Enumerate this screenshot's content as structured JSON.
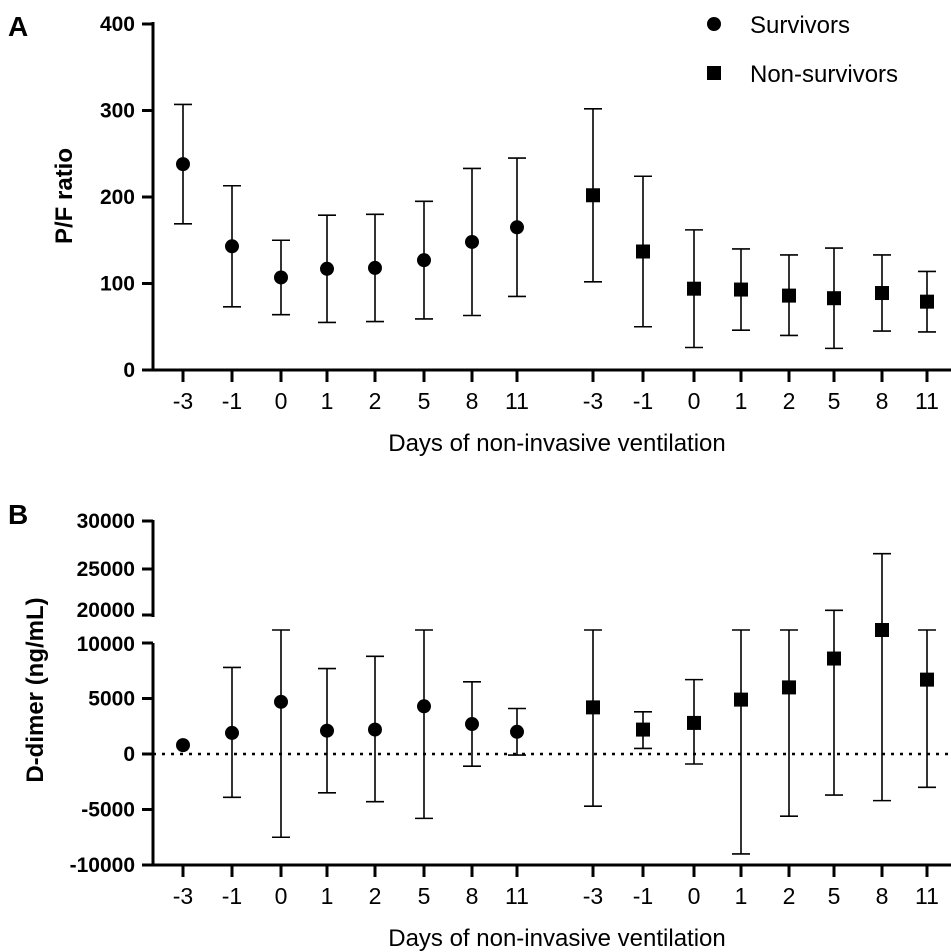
{
  "chart_data": [
    {
      "panel": "A",
      "type": "scatter",
      "ylabel": "P/F ratio",
      "xlabel": "Days of non-invasive ventilation",
      "ylim": [
        0,
        400
      ],
      "yticks": [
        0,
        100,
        200,
        300,
        400
      ],
      "ytick_labels": [
        "0",
        "100",
        "200",
        "300",
        "400"
      ],
      "legend": {
        "position": "top-right",
        "entries": [
          {
            "label": "Survivors",
            "marker": "circle"
          },
          {
            "label": "Non-survivors",
            "marker": "square"
          }
        ]
      },
      "series": [
        {
          "name": "Survivors",
          "marker": "circle",
          "x": [
            "-3",
            "-1",
            "0",
            "1",
            "2",
            "5",
            "8",
            "11"
          ],
          "y": [
            238,
            143,
            107,
            117,
            118,
            127,
            148,
            165
          ],
          "err_low": [
            169,
            73,
            64,
            55,
            56,
            59,
            63,
            85
          ],
          "err_high": [
            307,
            213,
            150,
            179,
            180,
            195,
            233,
            245
          ]
        },
        {
          "name": "Non-survivors",
          "marker": "square",
          "x": [
            "-3",
            "-1",
            "0",
            "1",
            "2",
            "5",
            "8",
            "11"
          ],
          "y": [
            202,
            137,
            94,
            93,
            86,
            83,
            89,
            79
          ],
          "err_low": [
            102,
            50,
            26,
            46,
            40,
            25,
            45,
            44
          ],
          "err_high": [
            302,
            224,
            162,
            140,
            133,
            141,
            133,
            114
          ]
        }
      ]
    },
    {
      "panel": "B",
      "type": "scatter",
      "ylabel": "D-dimer (ng/mL)",
      "xlabel": "Days of non-invasive ventilation",
      "axis_break": [
        10000,
        20000
      ],
      "ylim_lower": [
        -10000,
        10000
      ],
      "ylim_upper": [
        20000,
        30000
      ],
      "yticks": [
        -10000,
        -5000,
        0,
        5000,
        10000,
        20000,
        25000,
        30000
      ],
      "ytick_labels": [
        "-10000",
        "-5000",
        "0",
        "5000",
        "10000",
        "20000",
        "25000",
        "30000"
      ],
      "zero_line": "dotted",
      "series": [
        {
          "name": "Survivors",
          "marker": "circle",
          "x": [
            "-3",
            "-1",
            "0",
            "1",
            "2",
            "5",
            "8",
            "11"
          ],
          "y": [
            800,
            1900,
            4700,
            2100,
            2200,
            4300,
            2700,
            2000
          ],
          "err_low": [
            null,
            -3900,
            -7500,
            -3500,
            -4300,
            -5800,
            -1100,
            -100
          ],
          "err_high": [
            null,
            7800,
            11200,
            7700,
            8800,
            11200,
            6500,
            4100
          ]
        },
        {
          "name": "Non-survivors",
          "marker": "square",
          "x": [
            "-3",
            "-1",
            "0",
            "1",
            "2",
            "5",
            "8",
            "11"
          ],
          "y": [
            4200,
            2200,
            2800,
            4900,
            6000,
            8600,
            11400,
            6700
          ],
          "err_low": [
            -4700,
            500,
            -900,
            -9000,
            -5600,
            -3700,
            -4200,
            -3000
          ],
          "err_high": [
            11200,
            3800,
            6700,
            11200,
            11200,
            20700,
            26600,
            11200
          ]
        }
      ]
    }
  ]
}
